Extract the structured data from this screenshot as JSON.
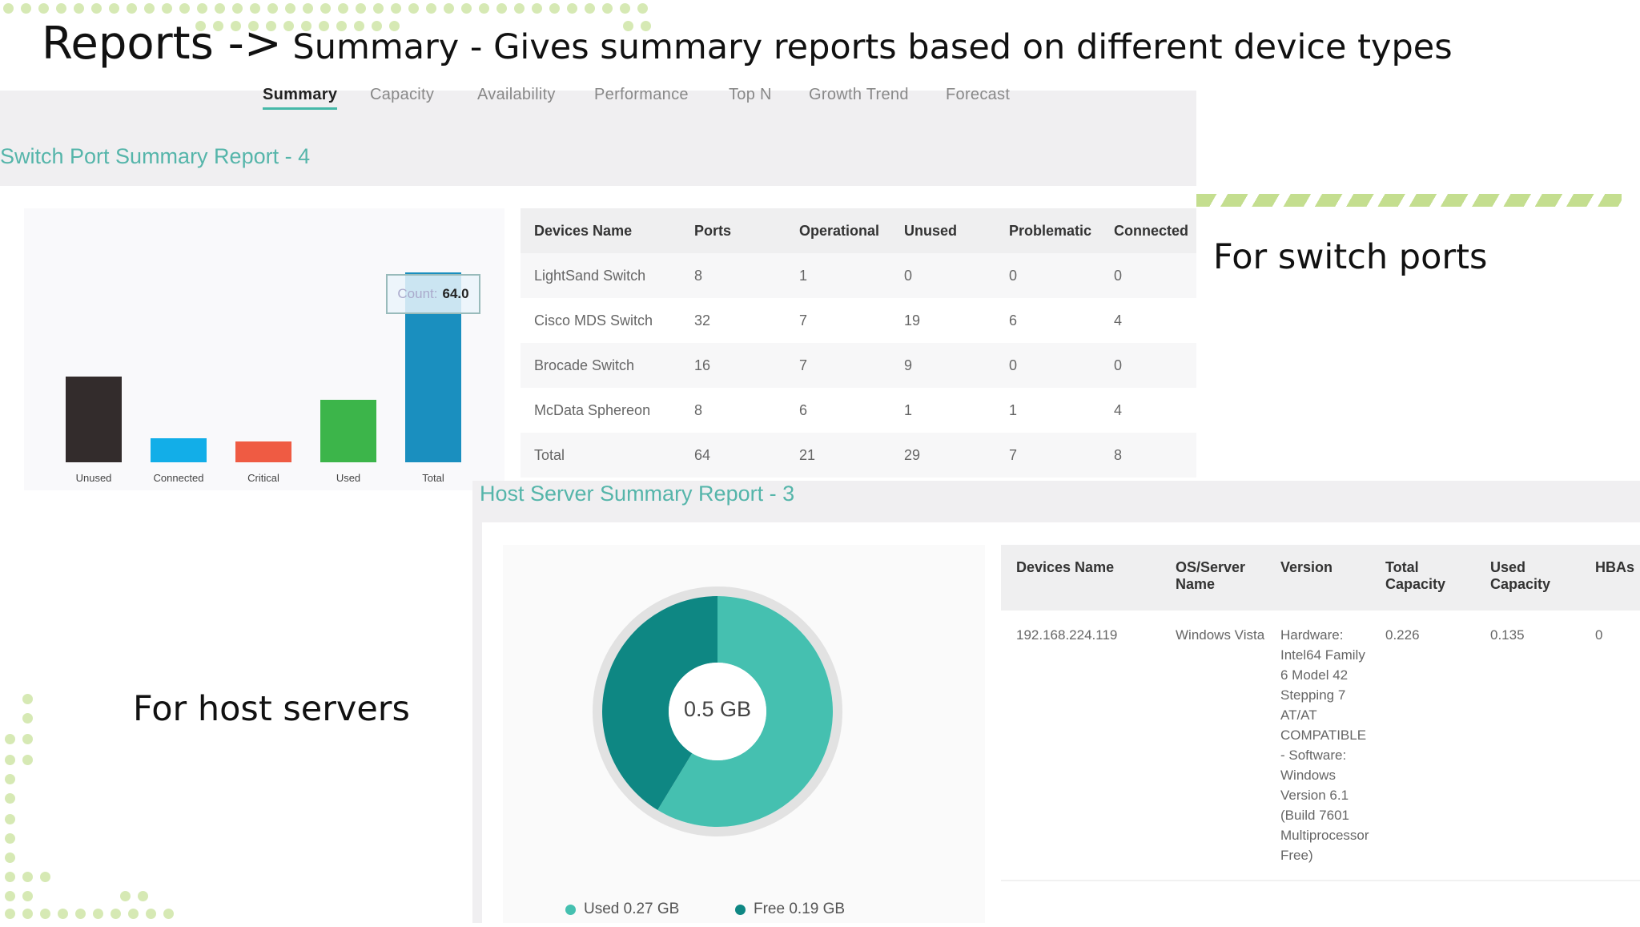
{
  "slide": {
    "title_main": "Reports ->",
    "title_rest": " Summary -  Gives summary reports based on different device types",
    "note_switch": "For switch ports",
    "note_host": "For host servers"
  },
  "tabs": [
    {
      "label": "Summary",
      "active": true
    },
    {
      "label": "Capacity"
    },
    {
      "label": "Availability"
    },
    {
      "label": "Performance"
    },
    {
      "label": "Top N"
    },
    {
      "label": "Growth Trend"
    },
    {
      "label": "Forecast"
    }
  ],
  "switch_report": {
    "title": "Switch Port Summary Report - 4",
    "tooltip": {
      "label": "Count:",
      "value": "64.0"
    },
    "columns": [
      "Devices Name",
      "Ports",
      "Operational",
      "Unused",
      "Problematic",
      "Connected"
    ],
    "rows": [
      [
        "LightSand Switch",
        "8",
        "1",
        "0",
        "0",
        "0"
      ],
      [
        "Cisco MDS Switch",
        "32",
        "7",
        "19",
        "6",
        "4"
      ],
      [
        "Brocade Switch",
        "16",
        "7",
        "9",
        "0",
        "0"
      ],
      [
        "McData Sphereon",
        "8",
        "6",
        "1",
        "1",
        "4"
      ],
      [
        "Total",
        "64",
        "21",
        "29",
        "7",
        "8"
      ]
    ]
  },
  "host_report": {
    "title": "Host Server Summary Report - 3",
    "center_label": "0.5 GB",
    "legend": [
      {
        "label": "Used 0.27 GB",
        "color": "#45c0b0"
      },
      {
        "label": "Free 0.19 GB",
        "color": "#0e8783"
      }
    ],
    "columns": [
      "Devices Name",
      "OS/Server Name",
      "Version",
      "Total Capacity",
      "Used Capacity",
      "HBAs"
    ],
    "rows": [
      [
        "192.168.224.119",
        "Windows Vista",
        "Hardware: Intel64 Family 6 Model 42 Stepping 7 AT/AT COMPATIBLE - Software: Windows Version 6.1 (Build 7601 Multiprocessor Free)",
        "0.226",
        "0.135",
        "0"
      ]
    ]
  },
  "chart_data": [
    {
      "type": "bar",
      "categories": [
        "Unused",
        "Connected",
        "Critical",
        "Used",
        "Total"
      ],
      "values": [
        29,
        8,
        7,
        21,
        64
      ],
      "colors": [
        "#332c2c",
        "#12aee8",
        "#ef5b43",
        "#3cb54a",
        "#1a8fbf"
      ],
      "ylim": [
        0,
        64
      ],
      "grid": false
    },
    {
      "type": "pie",
      "donut": true,
      "labels": [
        "Used",
        "Free"
      ],
      "values": [
        0.27,
        0.19
      ],
      "colors": [
        "#45c0b0",
        "#0e8783"
      ],
      "center_label": "0.5 GB"
    }
  ]
}
